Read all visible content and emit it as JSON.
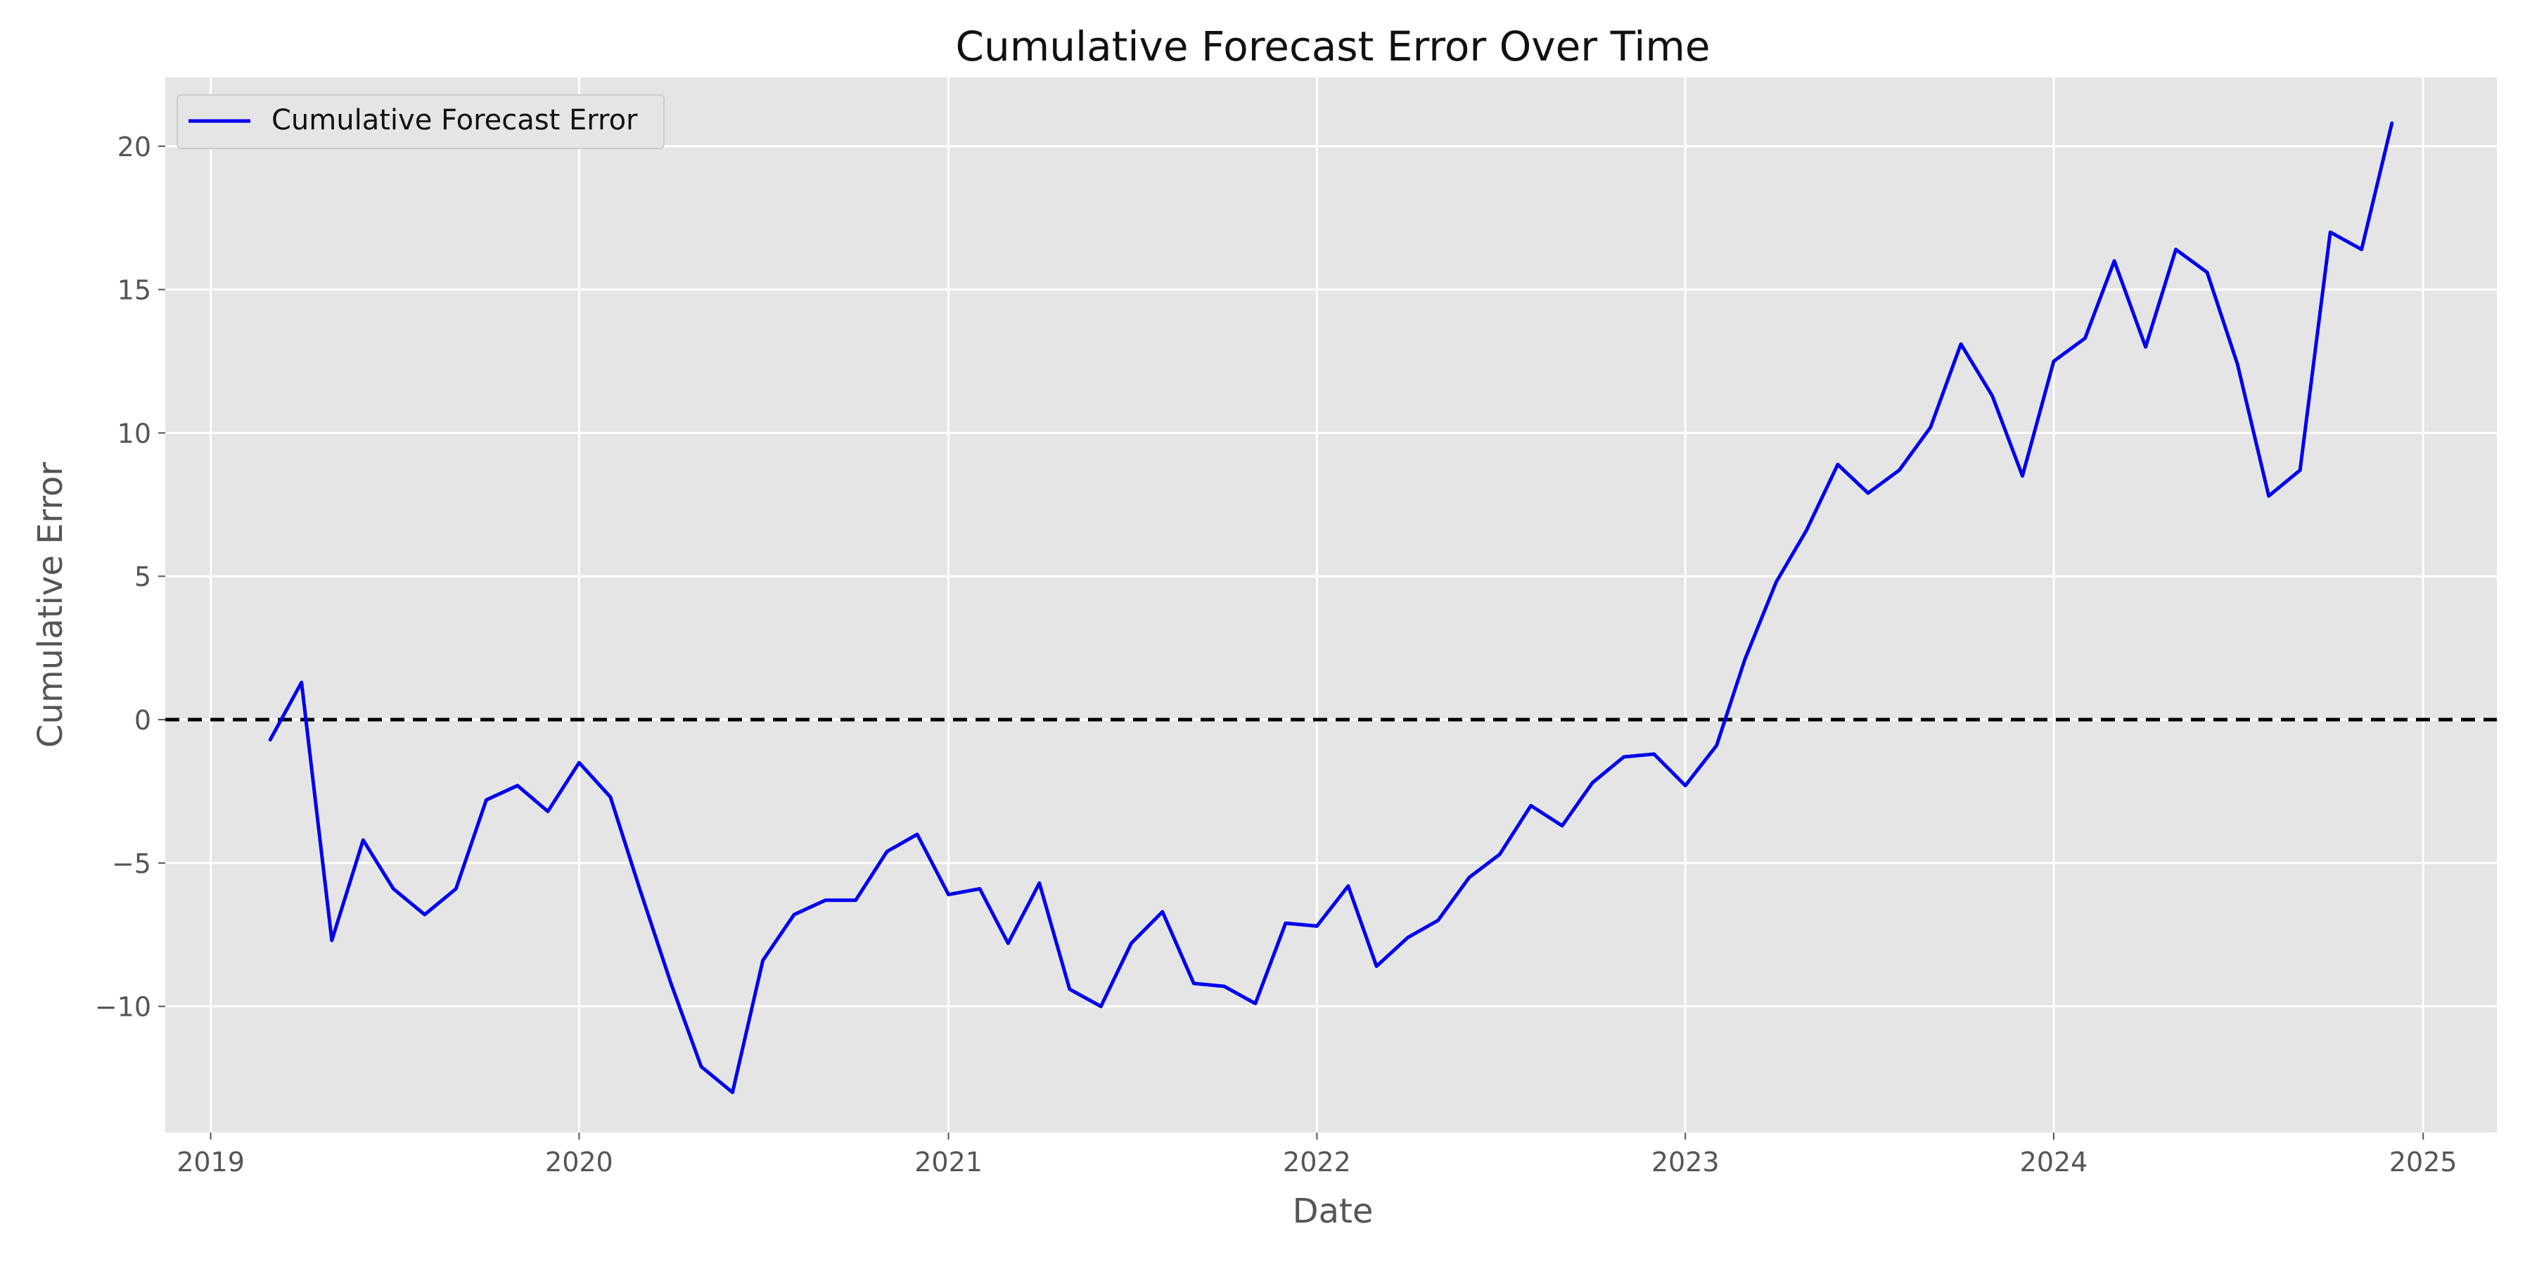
{
  "chart_data": {
    "type": "line",
    "title": "Cumulative Forecast Error Over Time",
    "xlabel": "Date",
    "ylabel": "Cumulative Error",
    "grid": true,
    "legend_position": "upper-left",
    "x_ticks": [
      "2019",
      "2020",
      "2021",
      "2022",
      "2023",
      "2024",
      "2025"
    ],
    "y_ticks": [
      {
        "value": 20,
        "label": "20"
      },
      {
        "value": 15,
        "label": "15"
      },
      {
        "value": 10,
        "label": "10"
      },
      {
        "value": 5,
        "label": "5"
      },
      {
        "value": 0,
        "label": "0"
      },
      {
        "value": -5,
        "label": "−5"
      },
      {
        "value": -10,
        "label": "−10"
      }
    ],
    "xlim": [
      "2018-11-17",
      "2025-03-15"
    ],
    "ylim": [
      -14.4,
      22.4
    ],
    "colors": {
      "series": "#0000ee",
      "reference_line": "#000000",
      "plot_background": "#e5e5e5",
      "grid": "#ffffff",
      "text": "#555555"
    },
    "reference_line": {
      "y": 0,
      "style": "dashed"
    },
    "series": [
      {
        "name": "Cumulative Forecast Error",
        "x": [
          "2019-03",
          "2019-04",
          "2019-05",
          "2019-06",
          "2019-07",
          "2019-08",
          "2019-09",
          "2019-10",
          "2019-11",
          "2019-12",
          "2020-01",
          "2020-02",
          "2020-03",
          "2020-04",
          "2020-05",
          "2020-06",
          "2020-07",
          "2020-08",
          "2020-09",
          "2020-10",
          "2020-11",
          "2020-12",
          "2021-01",
          "2021-02",
          "2021-03",
          "2021-04",
          "2021-05",
          "2021-06",
          "2021-07",
          "2021-08",
          "2021-09",
          "2021-10",
          "2021-11",
          "2021-12",
          "2022-01",
          "2022-02",
          "2022-03",
          "2022-04",
          "2022-05",
          "2022-06",
          "2022-07",
          "2022-08",
          "2022-09",
          "2022-10",
          "2022-11",
          "2022-12",
          "2023-01",
          "2023-02",
          "2023-03",
          "2023-04",
          "2023-05",
          "2023-06",
          "2023-07",
          "2023-08",
          "2023-09",
          "2023-10",
          "2023-11",
          "2023-12",
          "2024-01",
          "2024-02",
          "2024-03",
          "2024-04",
          "2024-05",
          "2024-06",
          "2024-07",
          "2024-08",
          "2024-09",
          "2024-10",
          "2024-11",
          "2024-12"
        ],
        "y": [
          -0.7,
          1.3,
          -7.7,
          -4.2,
          -5.9,
          -6.8,
          -5.9,
          -2.8,
          -2.3,
          -3.2,
          -1.5,
          -2.7,
          -5.9,
          -9.2,
          -12.1,
          -13.0,
          -8.4,
          -6.8,
          -6.3,
          -6.3,
          -4.6,
          -4.0,
          -6.1,
          -5.9,
          -7.8,
          -5.7,
          -9.4,
          -10.0,
          -7.8,
          -6.7,
          -9.2,
          -9.3,
          -9.9,
          -7.1,
          -7.2,
          -5.8,
          -8.6,
          -7.6,
          -7.0,
          -5.5,
          -4.7,
          -3.0,
          -3.7,
          -2.2,
          -1.3,
          -1.2,
          -2.3,
          -0.9,
          2.1,
          4.8,
          6.6,
          8.9,
          7.9,
          8.7,
          10.2,
          13.1,
          11.3,
          8.5,
          12.5,
          13.3,
          16.0,
          13.0,
          16.4,
          15.6,
          12.4,
          7.8,
          8.7,
          17.0,
          16.4,
          20.8
        ]
      }
    ]
  }
}
